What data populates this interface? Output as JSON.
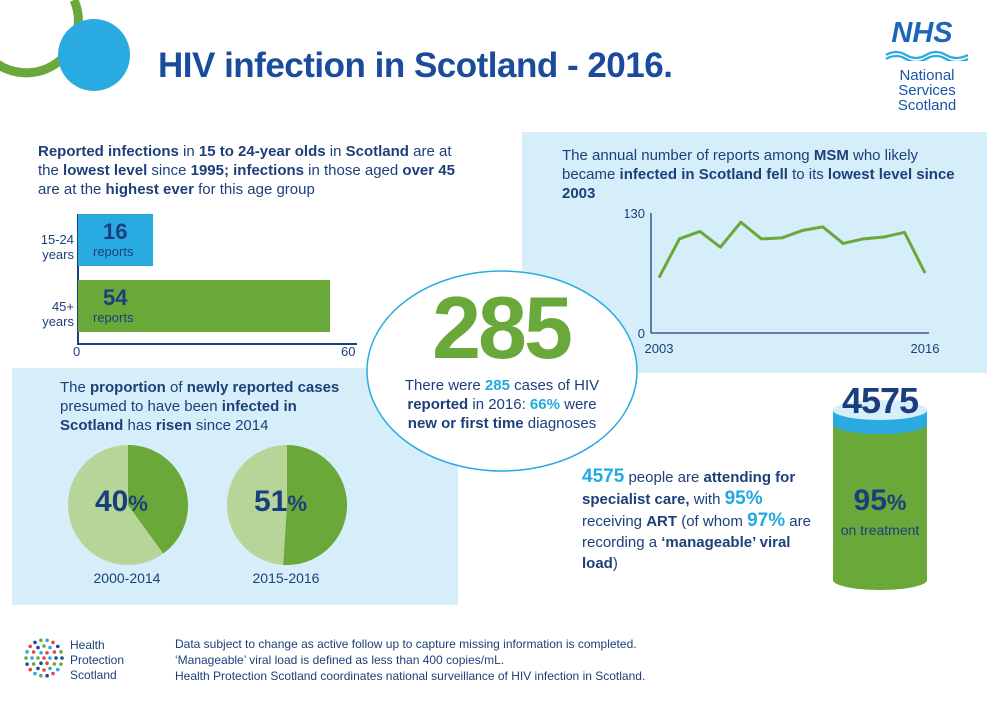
{
  "title": "HIV infection in Scotland - 2016.",
  "nhs_logo": {
    "mark": "NHS",
    "lines": [
      "National",
      "Services",
      "Scotland"
    ]
  },
  "age_section": {
    "text": [
      {
        "t": "Reported infections",
        "b": true
      },
      {
        "t": " in "
      },
      {
        "t": "15 to 24-year olds",
        "b": true
      },
      {
        "t": " in "
      },
      {
        "t": "Scotland",
        "b": true
      },
      {
        "t": " are at the "
      },
      {
        "t": "lowest level",
        "b": true
      },
      {
        "t": " since "
      },
      {
        "t": "1995; infections",
        "b": true
      },
      {
        "t": " in those aged "
      },
      {
        "t": "over 45",
        "b": true
      },
      {
        "t": " are at the "
      },
      {
        "t": "highest ever",
        "b": true
      },
      {
        "t": " for this age group"
      }
    ],
    "bars": [
      {
        "label_line1": "15-24",
        "label_line2": "years",
        "value": 16,
        "value_text": "16",
        "sub": "reports",
        "color": "#29abe2"
      },
      {
        "label_line1": "45+",
        "label_line2": "years",
        "value": 54,
        "value_text": "54",
        "sub": "reports",
        "color": "#6aa83a"
      }
    ],
    "axis": {
      "min_label": "0",
      "max_label": "60",
      "max": 60
    }
  },
  "msm_section": {
    "text": [
      {
        "t": "The annual number of reports among "
      },
      {
        "t": "MSM",
        "b": true
      },
      {
        "t": " who likely became "
      },
      {
        "t": "infected in Scotland fell",
        "b": true
      },
      {
        "t": " to its "
      },
      {
        "t": "lowest level since 2003",
        "b": true
      }
    ]
  },
  "chart_data": {
    "type": "line",
    "x": [
      2003,
      2004,
      2005,
      2006,
      2007,
      2008,
      2009,
      2010,
      2011,
      2012,
      2013,
      2014,
      2015,
      2016
    ],
    "series": [
      {
        "values": [
          60,
          102,
          110,
          93,
          120,
          102,
          103,
          111,
          115,
          97,
          102,
          104,
          109,
          65
        ]
      }
    ],
    "xlim": [
      2003,
      2016
    ],
    "ylim": [
      0,
      130
    ],
    "x_tick_labels": [
      "2003",
      "2016"
    ],
    "y_tick_labels": [
      "0",
      "130"
    ],
    "color": "#6aa83a"
  },
  "center": {
    "big_number": "285",
    "text": [
      {
        "t": "There were "
      },
      {
        "t": "285",
        "b": true,
        "c": "cyan"
      },
      {
        "t": " cases of HIV "
      },
      {
        "t": "reported",
        "b": true
      },
      {
        "t": " in 2016: "
      },
      {
        "t": "66%",
        "b": true,
        "c": "cyan"
      },
      {
        "t": " were "
      },
      {
        "t": "new or first time",
        "b": true
      },
      {
        "t": " diagnoses"
      }
    ]
  },
  "proportion_section": {
    "text": [
      {
        "t": "The "
      },
      {
        "t": "proportion",
        "b": true
      },
      {
        "t": " of "
      },
      {
        "t": "newly reported cases",
        "b": true
      },
      {
        "t": " presumed to have been "
      },
      {
        "t": "infected in Scotland",
        "b": true
      },
      {
        "t": " has "
      },
      {
        "t": "risen",
        "b": true
      },
      {
        "t": " since 2014"
      }
    ],
    "pies": [
      {
        "value": 40,
        "num": "40",
        "pct": "%",
        "caption": "2000-2014"
      },
      {
        "value": 51,
        "num": "51",
        "pct": "%",
        "caption": "2015-2016"
      }
    ],
    "colors": {
      "fill": "#6aa83a",
      "rest": "#b8d599"
    }
  },
  "care_section": {
    "text": [
      {
        "t": "4575",
        "b": true,
        "c": "cyan",
        "big": true
      },
      {
        "t": " people are "
      },
      {
        "t": "attending for specialist care,",
        "b": true
      },
      {
        "t": " with "
      },
      {
        "t": "95%",
        "b": true,
        "c": "cyan",
        "big": true
      },
      {
        "t": " receiving "
      },
      {
        "t": "ART",
        "b": true
      },
      {
        "t": " (of whom "
      },
      {
        "t": "97%",
        "b": true,
        "c": "cyan",
        "big": true
      },
      {
        "t": " are recording a "
      },
      {
        "t": "‘manageable’ viral load",
        "b": true
      },
      {
        "t": ")"
      }
    ],
    "cylinder": {
      "top_number": "4575",
      "num": "95",
      "pct": "%",
      "sub": "on treatment"
    }
  },
  "hps_logo": {
    "lines": [
      "Health",
      "Protection",
      "Scotland"
    ]
  },
  "footer": {
    "lines": [
      "Data subject to change as active follow up to capture missing information is completed.",
      "‘Manageable’ viral load is defined as less than 400 copies/mL.",
      "Health Protection Scotland coordinates national surveillance of HIV infection in Scotland."
    ]
  }
}
